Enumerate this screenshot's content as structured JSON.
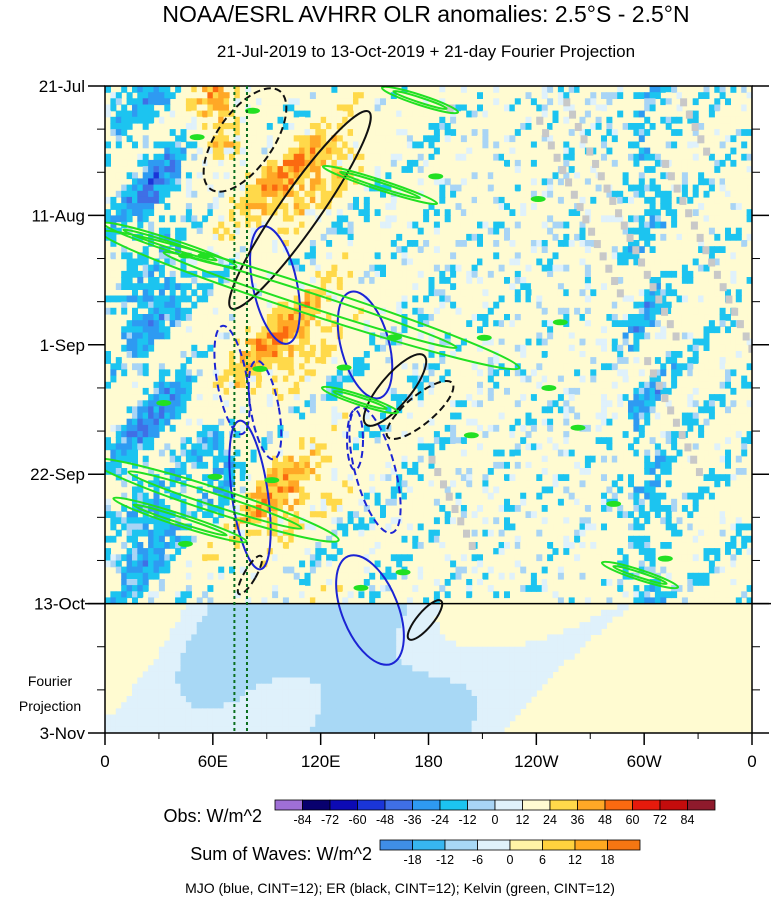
{
  "chart_data": {
    "type": "heatmap",
    "title": "NOAA/ESRL AVHRR OLR anomalies: 2.5°S - 2.5°N",
    "subtitle": "21-Jul-2019 to 13-Oct-2019 + 21-day Fourier Projection",
    "x_ticks": [
      "0",
      "60E",
      "120E",
      "180",
      "120W",
      "60W",
      "0"
    ],
    "x_tick_lon": [
      0,
      60,
      120,
      180,
      240,
      300,
      360
    ],
    "y_ticks": [
      "21-Jul",
      "11-Aug",
      "1-Sep",
      "22-Sep",
      "13-Oct",
      "3-Nov"
    ],
    "y_tick_day": [
      0,
      21,
      42,
      63,
      84,
      105
    ],
    "x_range_lon": [
      0,
      360
    ],
    "y_range_day": [
      0,
      105
    ],
    "observation_end_day": 84,
    "projection_label": [
      "Fourier",
      "Projection"
    ],
    "dashed_lines_lon": [
      72,
      79
    ],
    "obs_colorbar": {
      "label": "Obs: W/m^2",
      "levels": [
        "-84",
        "-72",
        "-60",
        "-48",
        "-36",
        "-24",
        "-12",
        "0",
        "12",
        "24",
        "36",
        "48",
        "60",
        "72",
        "84"
      ],
      "colors": [
        "#9f6fd6",
        "#08006e",
        "#0c0ab4",
        "#1a35d8",
        "#3f6fe6",
        "#2e9af2",
        "#1cc4f0",
        "#a8d4f5",
        "#dff1fb",
        "#fffbd1",
        "#ffd94a",
        "#ffa826",
        "#fb6a10",
        "#e61a0c",
        "#c40c0c",
        "#8e1a2c"
      ]
    },
    "waves_colorbar": {
      "label": "Sum of Waves: W/m^2",
      "levels": [
        "-18",
        "-12",
        "-6",
        "0",
        "6",
        "12",
        "18"
      ],
      "colors": [
        "#3f8ee6",
        "#37b6f0",
        "#a8d8f5",
        "#dff1fb",
        "#fff4a6",
        "#ffd23e",
        "#ffa820",
        "#f57612"
      ]
    },
    "footer": "MJO (blue, CINT=12); ER (black, CINT=12); Kelvin (green, CINT=12)",
    "wave_colors": {
      "mjo": "#1c24d4",
      "er": "#111111",
      "kelvin": "#22e022"
    }
  }
}
